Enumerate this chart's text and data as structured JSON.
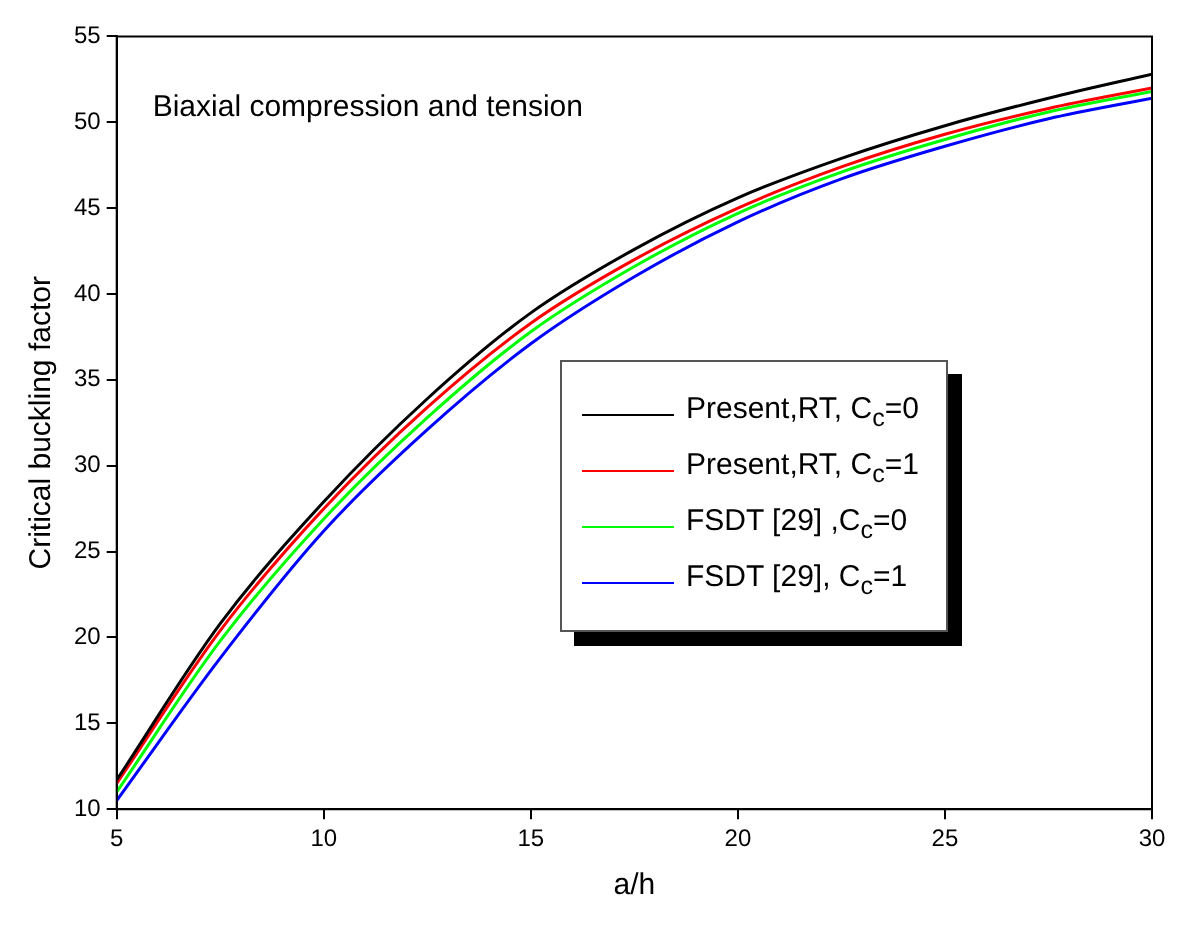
{
  "chart_data": {
    "type": "line",
    "title": "Biaxial compression and tension",
    "xlabel": "a/h",
    "ylabel": "Critical buckling factor",
    "x": [
      5,
      7.5,
      10,
      12.5,
      15,
      17.5,
      20,
      22.5,
      25,
      27.5,
      30
    ],
    "series": [
      {
        "name": "Present,RT, C$_{c}$=0",
        "color": "#000000",
        "values": [
          11.7,
          20.8,
          27.9,
          33.9,
          38.9,
          42.6,
          45.6,
          47.9,
          49.8,
          51.4,
          52.8
        ]
      },
      {
        "name": "Present,RT, C$_{c}$=1",
        "color": "#ff0000",
        "values": [
          11.5,
          20.4,
          27.5,
          33.4,
          38.3,
          42.0,
          45.0,
          47.4,
          49.3,
          50.8,
          52.0
        ]
      },
      {
        "name": "FSDT [29] ,C$_{c}$=0",
        "color": "#00ff00",
        "values": [
          11.0,
          19.8,
          26.9,
          32.8,
          37.8,
          41.6,
          44.7,
          47.1,
          49.0,
          50.6,
          51.8
        ]
      },
      {
        "name": "FSDT [29], C$_{c}$=1",
        "color": "#0000ff",
        "values": [
          10.5,
          18.8,
          26.2,
          32.1,
          37.1,
          41.0,
          44.2,
          46.7,
          48.6,
          50.2,
          51.4
        ]
      }
    ],
    "xlim": [
      5,
      30
    ],
    "xticks": [
      5,
      10,
      15,
      20,
      25,
      30
    ],
    "ylim": [
      10,
      55
    ],
    "yticks": [
      10,
      15,
      20,
      25,
      30,
      35,
      40,
      45,
      50,
      55
    ],
    "grid": false,
    "legend": "right",
    "marker": "none",
    "line_style": "solid"
  }
}
